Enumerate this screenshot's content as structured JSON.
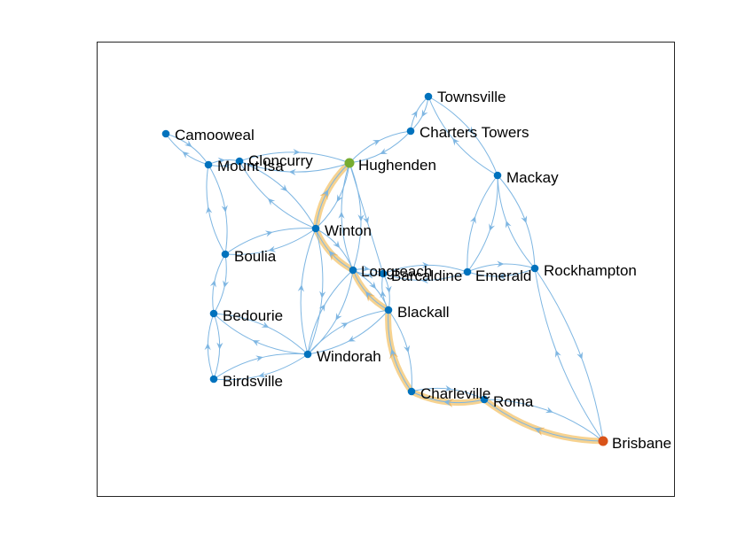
{
  "colors": {
    "node": "#0072BD",
    "edge": "#7EB6E2",
    "highlight_path": "#F5D08A",
    "start_node": "#77AC30",
    "end_node": "#D95319",
    "axes_box": "#262626",
    "background": "#ffffff"
  },
  "graph": {
    "directed": true,
    "start_node": "Brisbane",
    "end_node": "Hughenden",
    "nodes": [
      {
        "id": "Townsville",
        "label": "Townsville"
      },
      {
        "id": "ChartersTowers",
        "label": "Charters Towers"
      },
      {
        "id": "Camooweal",
        "label": "Camooweal"
      },
      {
        "id": "MountIsa",
        "label": "Mount Isa"
      },
      {
        "id": "Cloncurry",
        "label": "Cloncurry"
      },
      {
        "id": "Hughenden",
        "label": "Hughenden"
      },
      {
        "id": "Mackay",
        "label": "Mackay"
      },
      {
        "id": "Winton",
        "label": "Winton"
      },
      {
        "id": "Boulia",
        "label": "Boulia"
      },
      {
        "id": "Longreach",
        "label": "Longreach"
      },
      {
        "id": "Barcaldine",
        "label": "Barcaldine"
      },
      {
        "id": "Emerald",
        "label": "Emerald"
      },
      {
        "id": "Rockhampton",
        "label": "Rockhampton"
      },
      {
        "id": "Bedourie",
        "label": "Bedourie"
      },
      {
        "id": "Blackall",
        "label": "Blackall"
      },
      {
        "id": "Windorah",
        "label": "Windorah"
      },
      {
        "id": "Birdsville",
        "label": "Birdsville"
      },
      {
        "id": "Charleville",
        "label": "Charleville"
      },
      {
        "id": "Roma",
        "label": "Roma"
      },
      {
        "id": "Brisbane",
        "label": "Brisbane"
      }
    ],
    "edges": [
      [
        "Townsville",
        "ChartersTowers"
      ],
      [
        "ChartersTowers",
        "Townsville"
      ],
      [
        "Townsville",
        "Mackay"
      ],
      [
        "Mackay",
        "Townsville"
      ],
      [
        "ChartersTowers",
        "Hughenden"
      ],
      [
        "Hughenden",
        "ChartersTowers"
      ],
      [
        "Camooweal",
        "MountIsa"
      ],
      [
        "MountIsa",
        "Camooweal"
      ],
      [
        "MountIsa",
        "Cloncurry"
      ],
      [
        "Cloncurry",
        "MountIsa"
      ],
      [
        "Cloncurry",
        "Hughenden"
      ],
      [
        "Hughenden",
        "Cloncurry"
      ],
      [
        "MountIsa",
        "Boulia"
      ],
      [
        "Boulia",
        "MountIsa"
      ],
      [
        "Cloncurry",
        "Winton"
      ],
      [
        "Winton",
        "Cloncurry"
      ],
      [
        "Hughenden",
        "Winton"
      ],
      [
        "Winton",
        "Hughenden"
      ],
      [
        "Hughenden",
        "Longreach"
      ],
      [
        "Longreach",
        "Hughenden"
      ],
      [
        "Hughenden",
        "Barcaldine"
      ],
      [
        "Winton",
        "Boulia"
      ],
      [
        "Boulia",
        "Winton"
      ],
      [
        "Winton",
        "Longreach"
      ],
      [
        "Longreach",
        "Winton"
      ],
      [
        "Winton",
        "Windorah"
      ],
      [
        "Windorah",
        "Winton"
      ],
      [
        "Boulia",
        "Bedourie"
      ],
      [
        "Bedourie",
        "Boulia"
      ],
      [
        "Bedourie",
        "Birdsville"
      ],
      [
        "Birdsville",
        "Bedourie"
      ],
      [
        "Bedourie",
        "Windorah"
      ],
      [
        "Windorah",
        "Bedourie"
      ],
      [
        "Birdsville",
        "Windorah"
      ],
      [
        "Windorah",
        "Birdsville"
      ],
      [
        "Windorah",
        "Longreach"
      ],
      [
        "Longreach",
        "Windorah"
      ],
      [
        "Windorah",
        "Blackall"
      ],
      [
        "Blackall",
        "Windorah"
      ],
      [
        "Longreach",
        "Barcaldine"
      ],
      [
        "Barcaldine",
        "Longreach"
      ],
      [
        "Barcaldine",
        "Blackall"
      ],
      [
        "Blackall",
        "Barcaldine"
      ],
      [
        "Barcaldine",
        "Emerald"
      ],
      [
        "Emerald",
        "Barcaldine"
      ],
      [
        "Emerald",
        "Mackay"
      ],
      [
        "Mackay",
        "Emerald"
      ],
      [
        "Emerald",
        "Rockhampton"
      ],
      [
        "Rockhampton",
        "Emerald"
      ],
      [
        "Mackay",
        "Rockhampton"
      ],
      [
        "Rockhampton",
        "Mackay"
      ],
      [
        "Rockhampton",
        "Brisbane"
      ],
      [
        "Brisbane",
        "Rockhampton"
      ],
      [
        "Longreach",
        "Blackall"
      ],
      [
        "Blackall",
        "Longreach"
      ],
      [
        "Blackall",
        "Charleville"
      ],
      [
        "Charleville",
        "Blackall"
      ],
      [
        "Charleville",
        "Roma"
      ],
      [
        "Roma",
        "Charleville"
      ],
      [
        "Roma",
        "Brisbane"
      ],
      [
        "Brisbane",
        "Roma"
      ]
    ],
    "highlight_path": [
      "Brisbane",
      "Roma",
      "Charleville",
      "Blackall",
      "Longreach",
      "Winton",
      "Hughenden"
    ]
  }
}
